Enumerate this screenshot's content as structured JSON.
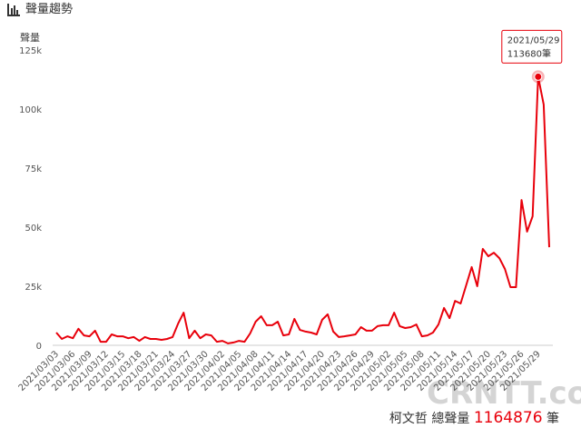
{
  "chart_data": {
    "type": "line",
    "title": "聲量趨勢",
    "y_label": "聲量",
    "categories": [
      "2021/03/03",
      null,
      null,
      "2021/03/06",
      null,
      null,
      "2021/03/09",
      null,
      null,
      "2021/03/12",
      null,
      null,
      "2021/03/15",
      null,
      null,
      "2021/03/18",
      null,
      null,
      "2021/03/21",
      null,
      null,
      "2021/03/24",
      null,
      null,
      "2021/03/27",
      null,
      null,
      "2021/03/30",
      null,
      null,
      "2021/04/02",
      null,
      null,
      "2021/04/05",
      null,
      null,
      "2021/04/08",
      null,
      null,
      "2021/04/11",
      null,
      null,
      "2021/04/14",
      null,
      null,
      "2021/04/17",
      null,
      null,
      "2021/04/20",
      null,
      null,
      "2021/04/23",
      null,
      null,
      "2021/04/26",
      null,
      null,
      "2021/04/29",
      null,
      null,
      "2021/05/02",
      null,
      null,
      "2021/05/05",
      null,
      null,
      "2021/05/08",
      null,
      null,
      "2021/05/11",
      null,
      null,
      "2021/05/14",
      null,
      null,
      "2021/05/17",
      null,
      null,
      "2021/05/20",
      null,
      null,
      "2021/05/23",
      null,
      null,
      "2021/05/26",
      null,
      null,
      "2021/05/29",
      null,
      null
    ],
    "series": [
      {
        "name": "聲量",
        "color": "#e8000b",
        "values": [
          5400,
          2700,
          3800,
          3000,
          7000,
          4200,
          3800,
          6200,
          1500,
          1500,
          4600,
          3800,
          3800,
          3000,
          3500,
          1900,
          3500,
          2700,
          2700,
          2300,
          2700,
          3500,
          9200,
          13800,
          3000,
          6200,
          3000,
          4600,
          4200,
          1500,
          1900,
          800,
          1200,
          1900,
          1500,
          5000,
          10000,
          12300,
          8500,
          8500,
          10000,
          4200,
          4600,
          11200,
          6500,
          5800,
          5400,
          4600,
          10800,
          13100,
          5800,
          3500,
          3800,
          4200,
          4600,
          7700,
          6200,
          6200,
          8100,
          8500,
          8500,
          13800,
          8100,
          7300,
          7700,
          8800,
          3800,
          4200,
          5400,
          8800,
          15800,
          11500,
          18800,
          17700,
          25400,
          33100,
          25000,
          40800,
          37700,
          39200,
          36900,
          32300,
          24600,
          24600,
          61500,
          48100,
          54600,
          113680,
          101900,
          41500
        ]
      }
    ],
    "ylim": [
      0,
      125000
    ],
    "yticks": [
      0,
      {
        "value": 25000,
        "label": "25k"
      },
      {
        "value": 50000,
        "label": "50k"
      },
      {
        "value": 75000,
        "label": "75k"
      },
      {
        "value": 100000,
        "label": "100k"
      },
      {
        "value": 125000,
        "label": "125k"
      }
    ],
    "annotation": {
      "x": "2021/05/29",
      "text": "113680筆"
    },
    "total": {
      "name": "柯文哲",
      "label": "總聲量",
      "value": 1164876,
      "unit": "筆"
    },
    "watermark": "CRNTT.com"
  }
}
